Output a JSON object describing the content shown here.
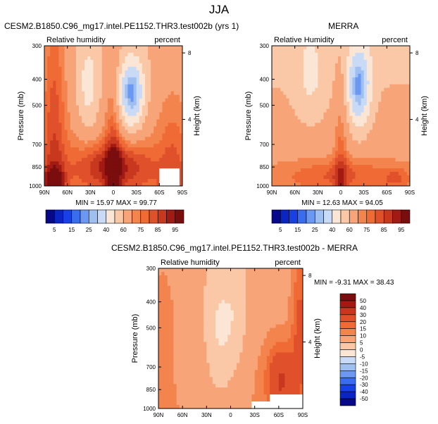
{
  "page_title": "JJA",
  "colors": {
    "diverging": [
      "#08088a",
      "#0b24c4",
      "#1740e6",
      "#3a6cf0",
      "#6b98f0",
      "#9fbff0",
      "#c8daf5",
      "#fbe6d6",
      "#fac8a6",
      "#f7a578",
      "#f4844e",
      "#ef6a35",
      "#e0502a",
      "#c8381f",
      "#a21a14",
      "#7a0d0d"
    ]
  },
  "chart_data": [
    {
      "id": "model",
      "type": "heatmap",
      "title": "CESM2.B1850.C96_mg17.intel.PE1152.THR3.test002b (yrs 1)",
      "left_label": "Relative humidity",
      "right_label": "percent",
      "xlabel": "",
      "ylabel": "Pressure (mb)",
      "right_axis_label": "Height (km)",
      "x_ticks": [
        "90N",
        "60N",
        "30N",
        "0",
        "30S",
        "60S",
        "90S"
      ],
      "y_ticks": [
        "300",
        "400",
        "500",
        "700",
        "850",
        "1000"
      ],
      "right_ticks": [
        "8",
        "4"
      ],
      "min_label": "MIN = ",
      "min": "15.97",
      "max_label": "MAX = ",
      "max": "99.77",
      "colorbar_labels": [
        "5",
        "15",
        "25",
        "40",
        "60",
        "75",
        "85",
        "95"
      ]
    },
    {
      "id": "obs",
      "type": "heatmap",
      "title": "MERRA",
      "left_label": "Relative Humidity",
      "right_label": "percent",
      "xlabel": "",
      "ylabel": "Pressure (mb)",
      "right_axis_label": "Height (km)",
      "x_ticks": [
        "90N",
        "60N",
        "30N",
        "0",
        "30S",
        "60S",
        "90S"
      ],
      "y_ticks": [
        "300",
        "400",
        "500",
        "700",
        "850",
        "1000"
      ],
      "right_ticks": [
        "8",
        "4"
      ],
      "min_label": "MIN = ",
      "min": "12.63",
      "max_label": "MAX = ",
      "max": "94.05",
      "colorbar_labels": [
        "5",
        "15",
        "25",
        "40",
        "60",
        "75",
        "85",
        "95"
      ]
    },
    {
      "id": "diff",
      "type": "heatmap",
      "title": "CESM2.B1850.C96_mg17.intel.PE1152.THR3.test002b - MERRA",
      "left_label": "Relative humidity",
      "right_label": "percent",
      "xlabel": "",
      "ylabel": "Pressure (mb)",
      "right_axis_label": "Height (km)",
      "x_ticks": [
        "90N",
        "60N",
        "30N",
        "0",
        "30S",
        "60S",
        "90S"
      ],
      "y_ticks": [
        "300",
        "400",
        "500",
        "700",
        "850",
        "1000"
      ],
      "right_ticks": [
        "8",
        "4"
      ],
      "min_label": "MIN = ",
      "min": "-9.31",
      "max_label": "MAX = ",
      "max": "38.43",
      "colorbar_labels": [
        "50",
        "40",
        "30",
        "20",
        "15",
        "10",
        "5",
        "0",
        "-5",
        "-10",
        "-15",
        "-20",
        "-30",
        "-40",
        "-50"
      ]
    }
  ]
}
